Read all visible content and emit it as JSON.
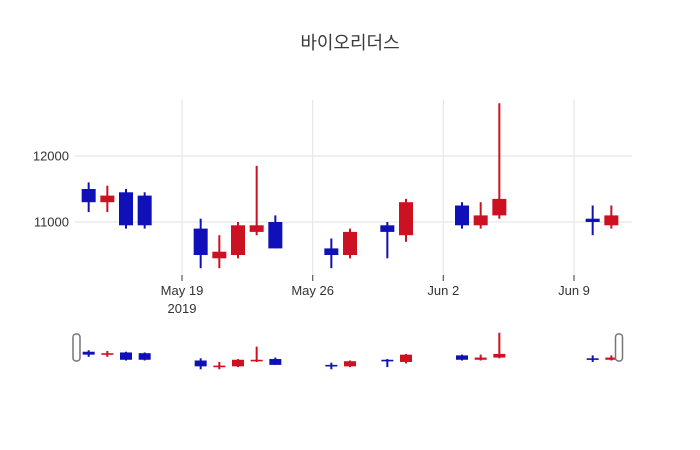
{
  "chart_data": {
    "type": "candlestick",
    "title": "바이오리더스",
    "legend": false,
    "grid": true,
    "y_domain": [
      10250,
      12850
    ],
    "y_ticks": [
      {
        "label": "12000",
        "value": 12000
      },
      {
        "label": "11000",
        "value": 11000
      }
    ],
    "x_ticks": [
      {
        "label": "May 19",
        "sublabel": "2019",
        "t": 6
      },
      {
        "label": "May 26",
        "sublabel": "",
        "t": 13
      },
      {
        "label": "Jun 2",
        "sublabel": "",
        "t": 20
      },
      {
        "label": "Jun 9",
        "sublabel": "",
        "t": 27
      }
    ],
    "colors": {
      "increasing": "#CC1122",
      "decreasing": "#1010B8",
      "grid": "#E8E8E8",
      "text": "#333333",
      "handle_border": "#777777"
    },
    "candles": [
      {
        "date": "May 14",
        "t": 1,
        "open": 11500,
        "high": 11600,
        "low": 11150,
        "close": 11300
      },
      {
        "date": "May 15",
        "t": 2,
        "open": 11300,
        "high": 11550,
        "low": 11150,
        "close": 11400
      },
      {
        "date": "May 16",
        "t": 3,
        "open": 11450,
        "high": 11500,
        "low": 10900,
        "close": 10950
      },
      {
        "date": "May 17",
        "t": 4,
        "open": 11400,
        "high": 11450,
        "low": 10900,
        "close": 10950
      },
      {
        "date": "May 20",
        "t": 7,
        "open": 10900,
        "high": 11050,
        "low": 10300,
        "close": 10500
      },
      {
        "date": "May 21",
        "t": 8,
        "open": 10450,
        "high": 10800,
        "low": 10300,
        "close": 10550
      },
      {
        "date": "May 22",
        "t": 9,
        "open": 10500,
        "high": 11000,
        "low": 10450,
        "close": 10950
      },
      {
        "date": "May 23",
        "t": 10,
        "open": 10850,
        "high": 11850,
        "low": 10800,
        "close": 10950
      },
      {
        "date": "May 24",
        "t": 11,
        "open": 11000,
        "high": 11100,
        "low": 10600,
        "close": 10600
      },
      {
        "date": "May 27",
        "t": 14,
        "open": 10600,
        "high": 10750,
        "low": 10300,
        "close": 10500
      },
      {
        "date": "May 28",
        "t": 15,
        "open": 10500,
        "high": 10900,
        "low": 10450,
        "close": 10850
      },
      {
        "date": "May 30",
        "t": 17,
        "open": 10950,
        "high": 11000,
        "low": 10450,
        "close": 10850
      },
      {
        "date": "May 31",
        "t": 18,
        "open": 10800,
        "high": 11350,
        "low": 10700,
        "close": 11300
      },
      {
        "date": "Jun 3",
        "t": 21,
        "open": 11250,
        "high": 11300,
        "low": 10900,
        "close": 10950
      },
      {
        "date": "Jun 4",
        "t": 22,
        "open": 10950,
        "high": 11300,
        "low": 10900,
        "close": 11100
      },
      {
        "date": "Jun 5",
        "t": 23,
        "open": 11100,
        "high": 12800,
        "low": 11050,
        "close": 11350
      },
      {
        "date": "Jun 10",
        "t": 28,
        "open": 11050,
        "high": 11250,
        "low": 10800,
        "close": 11000
      },
      {
        "date": "Jun 11",
        "t": 29,
        "open": 10950,
        "high": 11250,
        "low": 10900,
        "close": 11100
      }
    ],
    "range_slider": {
      "enabled": true,
      "selected_range": "full"
    }
  }
}
